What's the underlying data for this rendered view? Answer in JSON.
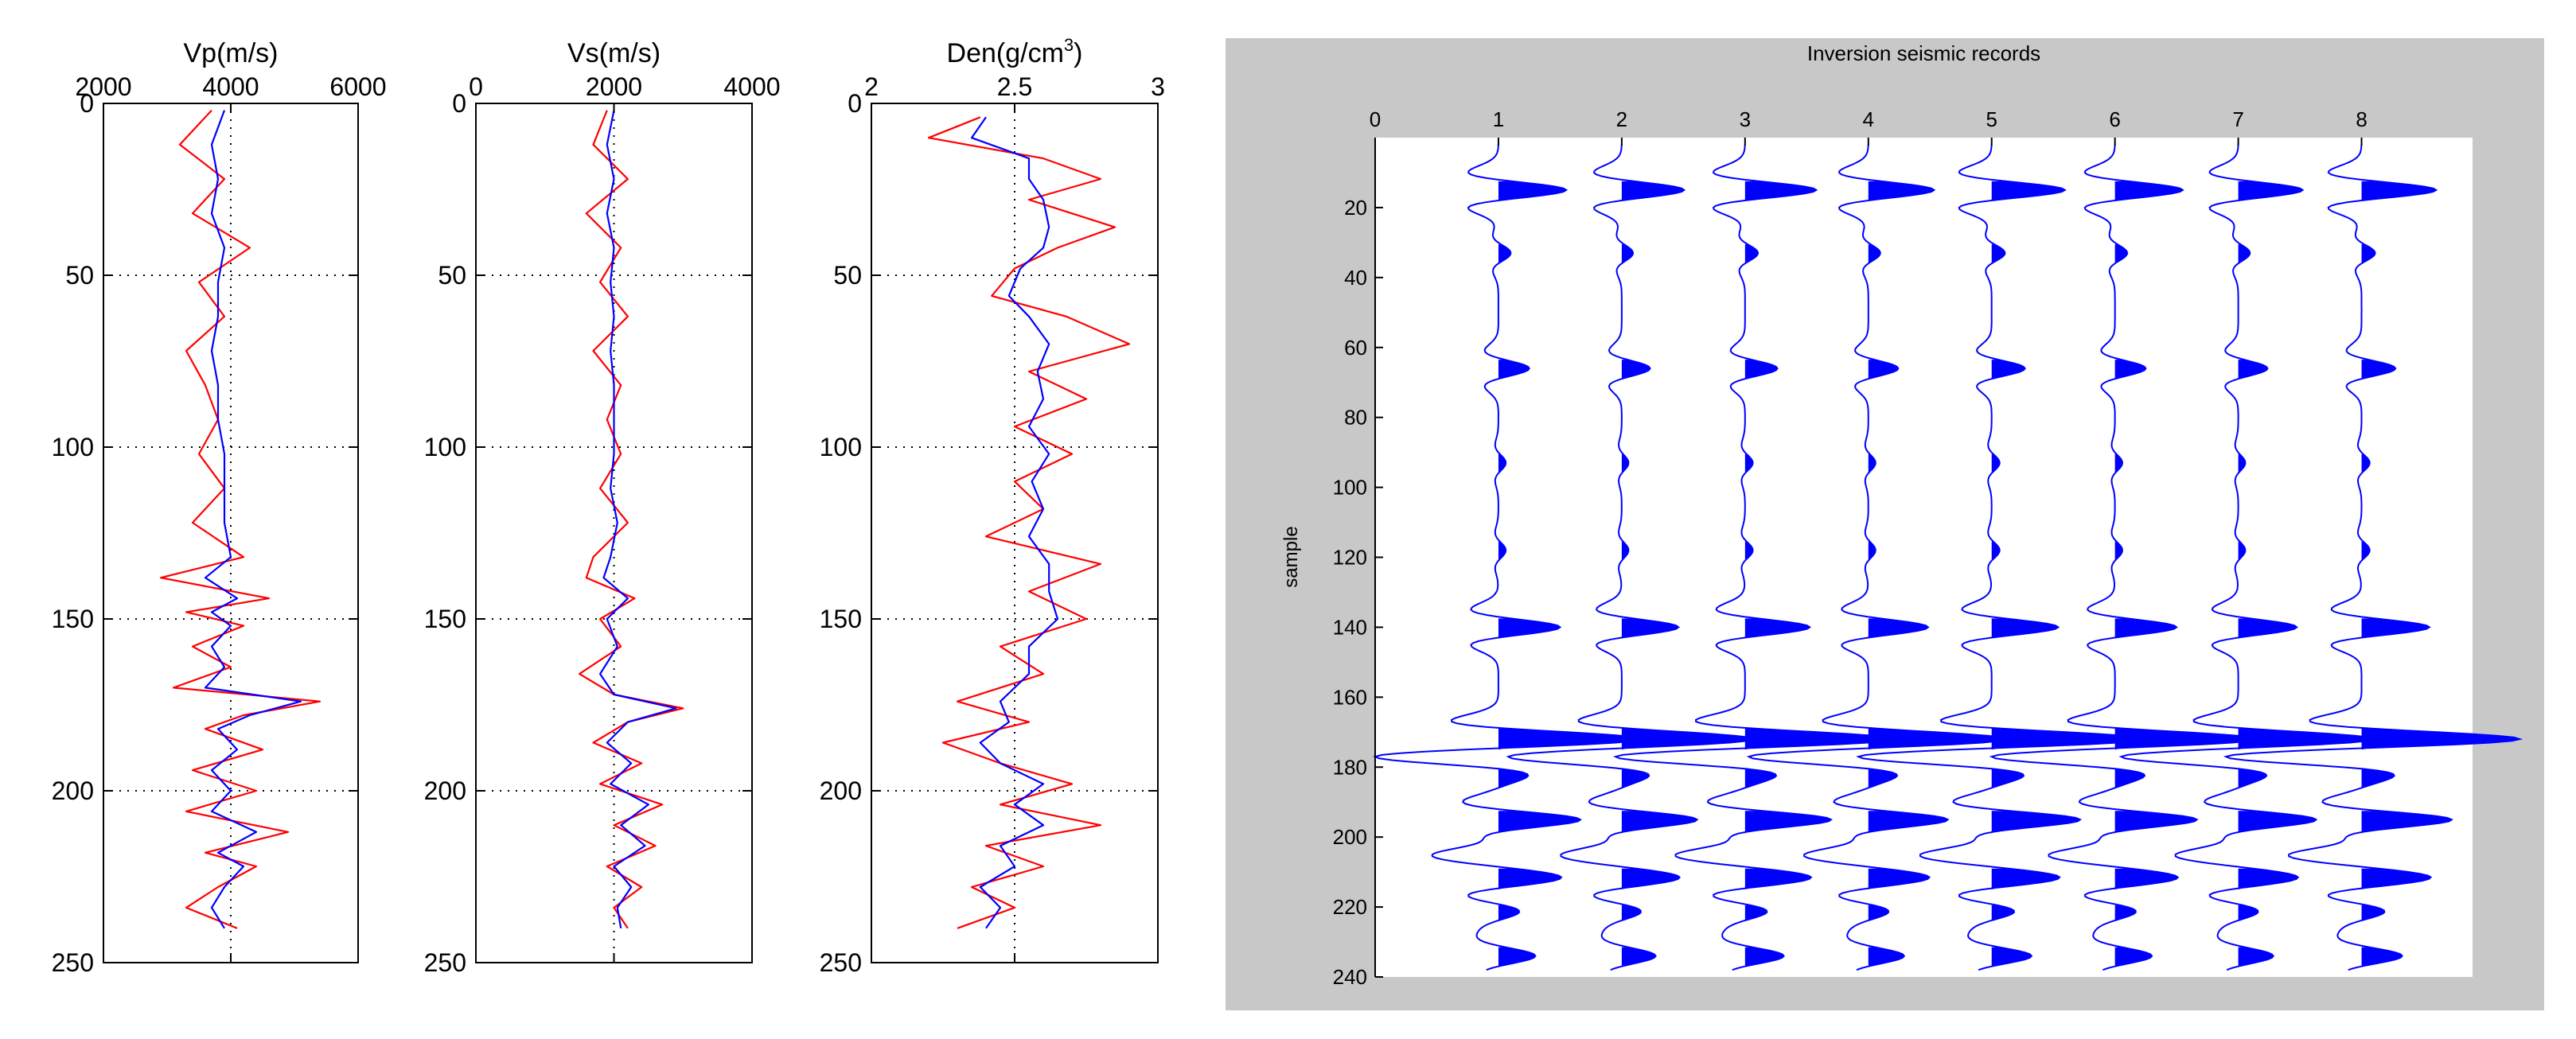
{
  "colors": {
    "red": "#ff0000",
    "blue": "#0000ff",
    "axis": "#000000",
    "panel_bg": "#c8c8c8",
    "plot_bg": "#ffffff"
  },
  "chart_data": [
    {
      "id": "vp",
      "type": "line",
      "title": "Vp(m/s)",
      "xlim": [
        2000,
        6000
      ],
      "ylim": [
        0,
        250
      ],
      "xticks": [
        "2000",
        "4000",
        "6000"
      ],
      "xtick_values": [
        2000,
        4000,
        6000
      ],
      "yticks": [
        "0",
        "50",
        "100",
        "150",
        "200",
        "250"
      ],
      "ytick_values": [
        0,
        50,
        100,
        150,
        200,
        250
      ],
      "y_reversed": true,
      "grid": "dotted",
      "series": [
        {
          "name": "red",
          "color": "red",
          "depth": [
            2,
            12,
            22,
            32,
            42,
            52,
            62,
            72,
            82,
            92,
            102,
            112,
            122,
            132,
            138,
            144,
            148,
            152,
            158,
            164,
            170,
            174,
            178,
            182,
            188,
            194,
            200,
            206,
            212,
            218,
            222,
            228,
            234,
            240
          ],
          "values": [
            3700,
            3200,
            3900,
            3400,
            4300,
            3500,
            3900,
            3300,
            3600,
            3800,
            3500,
            3900,
            3400,
            4200,
            2900,
            4600,
            3300,
            4200,
            3400,
            4000,
            3100,
            5400,
            4200,
            3600,
            4500,
            3400,
            4400,
            3300,
            4900,
            3600,
            4400,
            3800,
            3300,
            4100
          ]
        },
        {
          "name": "blue",
          "color": "blue",
          "depth": [
            2,
            12,
            22,
            32,
            42,
            52,
            62,
            72,
            82,
            92,
            102,
            112,
            122,
            132,
            138,
            144,
            148,
            152,
            158,
            164,
            170,
            174,
            178,
            182,
            188,
            194,
            200,
            206,
            212,
            218,
            222,
            228,
            234,
            240
          ],
          "values": [
            3900,
            3700,
            3800,
            3700,
            3900,
            3800,
            3800,
            3700,
            3800,
            3800,
            3900,
            3900,
            3900,
            4000,
            3600,
            4100,
            3700,
            4000,
            3700,
            3900,
            3600,
            5100,
            4300,
            3800,
            4100,
            3700,
            4000,
            3700,
            4400,
            3800,
            4200,
            3900,
            3700,
            3900
          ]
        }
      ]
    },
    {
      "id": "vs",
      "type": "line",
      "title": "Vs(m/s)",
      "xlim": [
        0,
        4000
      ],
      "ylim": [
        0,
        250
      ],
      "xticks": [
        "0",
        "2000",
        "4000"
      ],
      "xtick_values": [
        0,
        2000,
        4000
      ],
      "yticks": [
        "0",
        "50",
        "100",
        "150",
        "200",
        "250"
      ],
      "ytick_values": [
        0,
        50,
        100,
        150,
        200,
        250
      ],
      "y_reversed": true,
      "grid": "dotted",
      "series": [
        {
          "name": "red",
          "color": "red",
          "depth": [
            2,
            12,
            22,
            32,
            42,
            52,
            62,
            72,
            82,
            92,
            102,
            112,
            122,
            132,
            138,
            144,
            150,
            158,
            166,
            172,
            176,
            180,
            186,
            192,
            198,
            204,
            210,
            216,
            222,
            228,
            234,
            240
          ],
          "values": [
            1900,
            1700,
            2200,
            1600,
            2100,
            1800,
            2200,
            1700,
            2100,
            1900,
            2100,
            1800,
            2200,
            1700,
            1600,
            2300,
            1800,
            2100,
            1500,
            2000,
            3000,
            2200,
            1700,
            2400,
            1800,
            2700,
            2000,
            2600,
            1900,
            2400,
            2000,
            2200
          ]
        },
        {
          "name": "blue",
          "color": "blue",
          "depth": [
            2,
            12,
            22,
            32,
            42,
            52,
            62,
            72,
            82,
            92,
            102,
            112,
            122,
            132,
            138,
            144,
            150,
            158,
            166,
            172,
            176,
            180,
            186,
            192,
            198,
            204,
            210,
            216,
            222,
            228,
            234,
            240
          ],
          "values": [
            2000,
            1900,
            2000,
            1900,
            2000,
            1950,
            2000,
            1950,
            2000,
            2000,
            2000,
            1950,
            2050,
            1950,
            1850,
            2200,
            1900,
            2050,
            1800,
            2000,
            2900,
            2200,
            1900,
            2250,
            1950,
            2500,
            2100,
            2450,
            2000,
            2250,
            2050,
            2100
          ]
        }
      ]
    },
    {
      "id": "den",
      "type": "line",
      "title": "Den(g/cm",
      "title_sup": "3",
      "title_end": ")",
      "xlim": [
        2,
        3
      ],
      "ylim": [
        0,
        250
      ],
      "xticks": [
        "2",
        "2.5",
        "3"
      ],
      "xtick_values": [
        2,
        2.5,
        3
      ],
      "yticks": [
        "0",
        "50",
        "100",
        "150",
        "200",
        "250"
      ],
      "ytick_values": [
        0,
        50,
        100,
        150,
        200,
        250
      ],
      "y_reversed": true,
      "grid": "dotted",
      "series": [
        {
          "name": "red",
          "color": "red",
          "depth": [
            4,
            10,
            16,
            22,
            28,
            36,
            42,
            48,
            56,
            62,
            70,
            78,
            86,
            94,
            102,
            110,
            118,
            126,
            134,
            142,
            150,
            158,
            166,
            174,
            180,
            186,
            192,
            198,
            204,
            210,
            216,
            222,
            228,
            234,
            240
          ],
          "values": [
            2.38,
            2.2,
            2.6,
            2.8,
            2.55,
            2.85,
            2.65,
            2.5,
            2.42,
            2.68,
            2.9,
            2.55,
            2.75,
            2.5,
            2.7,
            2.5,
            2.6,
            2.4,
            2.8,
            2.55,
            2.75,
            2.45,
            2.6,
            2.3,
            2.55,
            2.25,
            2.45,
            2.7,
            2.45,
            2.8,
            2.4,
            2.6,
            2.35,
            2.5,
            2.3
          ]
        },
        {
          "name": "blue",
          "color": "blue",
          "depth": [
            4,
            10,
            16,
            22,
            28,
            36,
            42,
            48,
            56,
            62,
            70,
            78,
            86,
            94,
            102,
            110,
            118,
            126,
            134,
            142,
            150,
            158,
            166,
            174,
            180,
            186,
            192,
            198,
            204,
            210,
            216,
            222,
            228,
            234,
            240
          ],
          "values": [
            2.4,
            2.35,
            2.55,
            2.55,
            2.6,
            2.62,
            2.6,
            2.52,
            2.48,
            2.55,
            2.62,
            2.58,
            2.6,
            2.55,
            2.62,
            2.56,
            2.6,
            2.55,
            2.62,
            2.62,
            2.65,
            2.55,
            2.55,
            2.45,
            2.48,
            2.38,
            2.45,
            2.6,
            2.5,
            2.6,
            2.45,
            2.5,
            2.38,
            2.45,
            2.4
          ]
        }
      ]
    },
    {
      "id": "seismic",
      "type": "line",
      "title": "Inversion seismic records",
      "ylabel": "sample",
      "xlim": [
        0,
        8.9
      ],
      "ylim": [
        0,
        240
      ],
      "xticks": [
        "0",
        "1",
        "2",
        "3",
        "4",
        "5",
        "6",
        "7",
        "8"
      ],
      "xtick_values": [
        0,
        1,
        2,
        3,
        4,
        5,
        6,
        7,
        8
      ],
      "yticks": [
        "20",
        "40",
        "60",
        "80",
        "100",
        "120",
        "140",
        "160",
        "180",
        "200",
        "220",
        "240"
      ],
      "ytick_values": [
        20,
        40,
        60,
        80,
        100,
        120,
        140,
        160,
        180,
        200,
        220,
        240
      ],
      "y_reversed": true,
      "grid": "none",
      "traces": [
        1,
        2,
        3,
        4,
        5,
        6,
        7,
        8
      ],
      "fill": "positive",
      "color": "blue",
      "events": [
        {
          "sample": 15,
          "amplitude": 0.55
        },
        {
          "sample": 33,
          "amplitude": 0.1
        },
        {
          "sample": 66,
          "amplitude": 0.25
        },
        {
          "sample": 93,
          "amplitude": 0.06
        },
        {
          "sample": 118,
          "amplitude": 0.06
        },
        {
          "sample": 140,
          "amplitude": 0.5
        },
        {
          "sample": 172,
          "amplitude": 0.9
        },
        {
          "sample": 177,
          "amplitude": -0.6
        },
        {
          "sample": 195,
          "amplitude": 0.65
        },
        {
          "sample": 205,
          "amplitude": -0.4
        },
        {
          "sample": 212,
          "amplitude": 0.4
        },
        {
          "sample": 221,
          "amplitude": 0.2
        },
        {
          "sample": 234,
          "amplitude": 0.3
        }
      ]
    }
  ]
}
